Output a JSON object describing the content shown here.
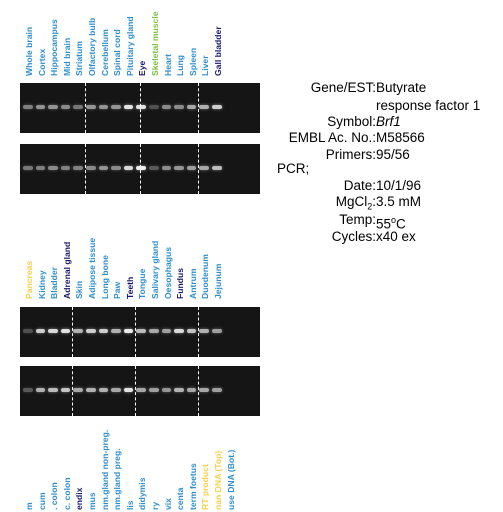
{
  "panel1": {
    "lanes": [
      {
        "label": "Whole brain",
        "color": "#2f8fce"
      },
      {
        "label": "Cortex",
        "color": "#2f8fce"
      },
      {
        "label": "Hippocampus",
        "color": "#2f8fce"
      },
      {
        "label": "Mid brain",
        "color": "#2f8fce"
      },
      {
        "label": "Striatum",
        "color": "#2f8fce"
      },
      {
        "label": "Olfactory bulb",
        "color": "#2f8fce"
      },
      {
        "label": "Cerebellum",
        "color": "#2f8fce"
      },
      {
        "label": "Spinal cord",
        "color": "#2f8fce"
      },
      {
        "label": "Pituitary gland",
        "color": "#2f8fce"
      },
      {
        "label": "Eye",
        "color": "#1a1a6e"
      },
      {
        "label": "Skeletal muscle",
        "color": "#7cc242"
      },
      {
        "label": "Heart",
        "color": "#2f8fce"
      },
      {
        "label": "Lung",
        "color": "#2f8fce"
      },
      {
        "label": "Spleen",
        "color": "#2f8fce"
      },
      {
        "label": "Liver",
        "color": "#2f8fce"
      },
      {
        "label": "Gall bladder",
        "color": "#1a1a6e"
      }
    ],
    "gel_top_intensity": [
      0.35,
      0.45,
      0.45,
      0.4,
      0.3,
      0.45,
      0.45,
      0.45,
      0.85,
      0.85,
      0.1,
      0.4,
      0.4,
      0.55,
      0.6,
      0.75
    ],
    "gel_bottom_intensity": [
      0.3,
      0.35,
      0.4,
      0.35,
      0.35,
      0.4,
      0.45,
      0.4,
      0.8,
      0.9,
      0.15,
      0.4,
      0.45,
      0.5,
      0.55,
      0.65
    ]
  },
  "panel2": {
    "lanes": [
      {
        "label": "Pancreas",
        "color": "#f5d04a"
      },
      {
        "label": "Kidney",
        "color": "#2f8fce"
      },
      {
        "label": "Bladder",
        "color": "#2f8fce"
      },
      {
        "label": "Adrenal gland",
        "color": "#1a1a6e"
      },
      {
        "label": "Skin",
        "color": "#2f8fce"
      },
      {
        "label": "Adipose tissue",
        "color": "#2f8fce"
      },
      {
        "label": "Long bone",
        "color": "#2f8fce"
      },
      {
        "label": "Paw",
        "color": "#2f8fce"
      },
      {
        "label": "Teeth",
        "color": "#1a1a6e"
      },
      {
        "label": "Tongue",
        "color": "#2f8fce"
      },
      {
        "label": "Salivary gland",
        "color": "#2f8fce"
      },
      {
        "label": "Oesophagus",
        "color": "#2f8fce"
      },
      {
        "label": "Fundus",
        "color": "#1a1a6e"
      },
      {
        "label": "Antrum",
        "color": "#2f8fce"
      },
      {
        "label": "Duodenum",
        "color": "#2f8fce"
      },
      {
        "label": "Jejunum",
        "color": "#2f8fce"
      }
    ],
    "gel_top_intensity": [
      0.1,
      0.75,
      0.8,
      0.85,
      0.6,
      0.75,
      0.75,
      0.6,
      0.9,
      0.65,
      0.55,
      0.5,
      0.8,
      0.7,
      0.6,
      0.5
    ],
    "gel_bottom_intensity": [
      0.15,
      0.6,
      0.65,
      0.7,
      0.55,
      0.6,
      0.6,
      0.55,
      0.85,
      0.55,
      0.5,
      0.45,
      0.6,
      0.55,
      0.55,
      0.5
    ]
  },
  "panel3": {
    "lanes": [
      {
        "label": "m",
        "color": "#2f8fce"
      },
      {
        "label": "cum",
        "color": "#2f8fce"
      },
      {
        "label": ". colon",
        "color": "#2f8fce"
      },
      {
        "label": "c. colon",
        "color": "#2f8fce"
      },
      {
        "label": "endix",
        "color": "#1a1a6e"
      },
      {
        "label": "mus",
        "color": "#2f8fce"
      },
      {
        "label": "nm.gland non-preg.",
        "color": "#2f8fce"
      },
      {
        "label": "nm.gland preg.",
        "color": "#2f8fce"
      },
      {
        "label": "lis",
        "color": "#2f8fce"
      },
      {
        "label": "didymis",
        "color": "#2f8fce"
      },
      {
        "label": "ry",
        "color": "#2f8fce"
      },
      {
        "label": "vix",
        "color": "#2f8fce"
      },
      {
        "label": "centa",
        "color": "#2f8fce"
      },
      {
        "label": "term foetus",
        "color": "#2f8fce"
      },
      {
        "label": "RT product",
        "color": "#f5d04a"
      },
      {
        "label": "nan DNA (Top)",
        "color": "#f5d04a"
      },
      {
        "label": "use DNA (Bot.)",
        "color": "#2f8fce"
      }
    ]
  },
  "info": {
    "gene_key": "Gene/EST:",
    "gene_val_1": "Butyrate",
    "gene_val_2": "response factor 1",
    "symbol_key": "Symbol:",
    "symbol_val": "Brf1",
    "embl_key": "EMBL Ac. No.:",
    "embl_val": "M58566",
    "primers_key": "Primers:",
    "primers_val": "95/56",
    "pcr_key": "PCR;",
    "date_key": "Date:",
    "date_val": "10/1/96",
    "mgcl_key": "MgCl",
    "mgcl_sub": "2",
    "mgcl_colon": ":",
    "mgcl_val": "3.5 mM",
    "temp_key": "Temp:",
    "temp_val_num": "55",
    "temp_val_deg": "o",
    "temp_val_unit": "C",
    "cycles_key": "Cycles:",
    "cycles_val": "x40 ex"
  }
}
